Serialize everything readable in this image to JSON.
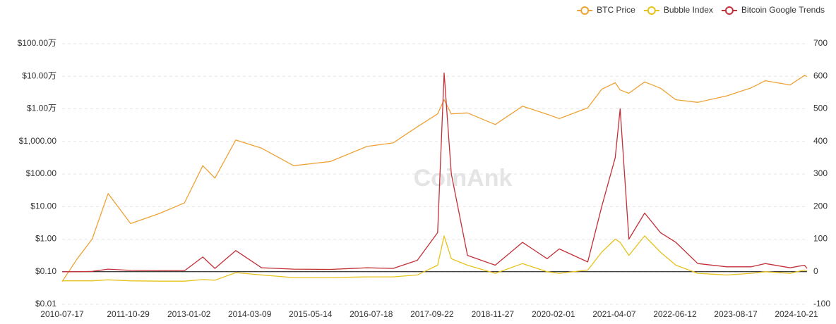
{
  "chart_data": {
    "type": "line",
    "watermark": "CoinAnk",
    "x": [
      "2010-07-17",
      "2010-11-01",
      "2011-02-15",
      "2011-06-08",
      "2011-11-15",
      "2012-06-01",
      "2012-12-01",
      "2013-04-10",
      "2013-07-05",
      "2013-11-30",
      "2014-06-01",
      "2015-01-14",
      "2015-10-01",
      "2016-06-18",
      "2016-12-20",
      "2017-06-10",
      "2017-11-01",
      "2017-12-17",
      "2018-02-06",
      "2018-06-01",
      "2018-12-15",
      "2019-06-26",
      "2019-12-18",
      "2020-03-13",
      "2020-10-01",
      "2021-01-08",
      "2021-04-14",
      "2021-05-19",
      "2021-07-20",
      "2021-11-09",
      "2022-03-01",
      "2022-06-18",
      "2022-11-21",
      "2023-06-15",
      "2023-12-05",
      "2024-03-14",
      "2024-09-06",
      "2024-12-17",
      "2025-01-04"
    ],
    "xlim": [
      "2010-07-17",
      "2025-01-04"
    ],
    "xticks": [
      "2010-07-17",
      "2011-10-29",
      "2013-01-02",
      "2014-03-09",
      "2015-05-14",
      "2016-07-18",
      "2017-09-22",
      "2018-11-27",
      "2020-02-01",
      "2021-04-07",
      "2022-06-12",
      "2023-08-17",
      "2024-10-21"
    ],
    "log_y": true,
    "ylim": [
      0.01,
      1000000
    ],
    "yticks": [
      {
        "value": 0.01,
        "label": "$0.01"
      },
      {
        "value": 0.1,
        "label": "$0.10"
      },
      {
        "value": 1,
        "label": "$1.00"
      },
      {
        "value": 10,
        "label": "$10.00"
      },
      {
        "value": 100,
        "label": "$100.00"
      },
      {
        "value": 1000,
        "label": "$1,000.00"
      },
      {
        "value": 10000,
        "label": "$1.00万"
      },
      {
        "value": 100000,
        "label": "$10.00万"
      },
      {
        "value": 1000000,
        "label": "$100.00万"
      }
    ],
    "y2lim": [
      -100,
      700
    ],
    "y2ticks": [
      -100,
      0,
      100,
      200,
      300,
      400,
      500,
      600,
      700
    ],
    "grid": true,
    "legend": "top-right",
    "series": [
      {
        "name": "BTC Price",
        "color": "#eea236",
        "values": [
          0.05,
          0.25,
          1,
          25,
          3,
          6,
          13,
          180,
          75,
          1100,
          620,
          180,
          240,
          700,
          900,
          2800,
          7000,
          19000,
          7000,
          7500,
          3300,
          12000,
          6800,
          5000,
          10700,
          40000,
          63000,
          38000,
          30000,
          67000,
          43000,
          19000,
          15800,
          25000,
          44000,
          73000,
          54000,
          106000,
          98000
        ]
      },
      {
        "name": "Bubble Index",
        "color": "#e6c21a",
        "axis": "y2",
        "values": [
          -28,
          -28,
          -28,
          -25,
          -28,
          -29,
          -29,
          -24,
          -26,
          -3,
          -10,
          -18,
          -18,
          -16,
          -16,
          -10,
          20,
          110,
          40,
          20,
          -5,
          25,
          0,
          -5,
          5,
          60,
          100,
          90,
          50,
          110,
          60,
          20,
          -5,
          -10,
          -5,
          0,
          -5,
          5,
          2
        ]
      },
      {
        "name": "Bitcoin Google Trends",
        "color": "#c23038",
        "axis": "y2",
        "values": [
          0,
          0,
          1,
          8,
          4,
          3,
          3,
          45,
          10,
          65,
          12,
          8,
          7,
          12,
          10,
          35,
          120,
          610,
          300,
          50,
          20,
          90,
          40,
          70,
          30,
          200,
          350,
          500,
          100,
          180,
          120,
          90,
          25,
          15,
          15,
          25,
          12,
          20,
          10
        ]
      }
    ]
  }
}
